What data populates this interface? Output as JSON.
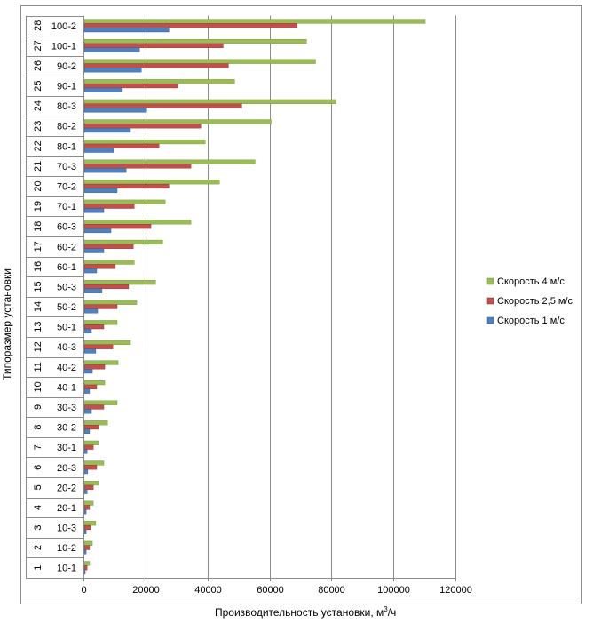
{
  "chart_data": {
    "type": "bar",
    "orientation": "horizontal",
    "title": "",
    "xlabel": "Производительность установки, м³/ч",
    "xlabel_main": "Производительность установки, м",
    "xlabel_sup": "3",
    "xlabel_tail": "/ч",
    "ylabel": "Типоразмер установки",
    "xlim": [
      0,
      120000
    ],
    "x_ticks": [
      "0",
      "20000",
      "40000",
      "60000",
      "80000",
      "100000",
      "120000"
    ],
    "x_tick_values": [
      0,
      20000,
      40000,
      60000,
      80000,
      100000,
      120000
    ],
    "grid": "vertical",
    "legend_position": "right",
    "categories": [
      {
        "num": "1",
        "label": "10-1"
      },
      {
        "num": "2",
        "label": "10-2"
      },
      {
        "num": "3",
        "label": "10-3"
      },
      {
        "num": "4",
        "label": "20-1"
      },
      {
        "num": "5",
        "label": "20-2"
      },
      {
        "num": "6",
        "label": "20-3"
      },
      {
        "num": "7",
        "label": "30-1"
      },
      {
        "num": "8",
        "label": "30-2"
      },
      {
        "num": "9",
        "label": "30-3"
      },
      {
        "num": "10",
        "label": "40-1"
      },
      {
        "num": "11",
        "label": "40-2"
      },
      {
        "num": "12",
        "label": "40-3"
      },
      {
        "num": "13",
        "label": "50-1"
      },
      {
        "num": "14",
        "label": "50-2"
      },
      {
        "num": "15",
        "label": "50-3"
      },
      {
        "num": "16",
        "label": "60-1"
      },
      {
        "num": "17",
        "label": "60-2"
      },
      {
        "num": "18",
        "label": "60-3"
      },
      {
        "num": "19",
        "label": "70-1"
      },
      {
        "num": "20",
        "label": "70-2"
      },
      {
        "num": "21",
        "label": "70-3"
      },
      {
        "num": "22",
        "label": "80-1"
      },
      {
        "num": "23",
        "label": "80-2"
      },
      {
        "num": "24",
        "label": "80-3"
      },
      {
        "num": "25",
        "label": "90-1"
      },
      {
        "num": "26",
        "label": "90-2"
      },
      {
        "num": "27",
        "label": "100-1"
      },
      {
        "num": "28",
        "label": "100-2"
      }
    ],
    "series": [
      {
        "name": "Скорость 4 м/с",
        "color": "#9BBB59",
        "values": [
          1700,
          2600,
          3700,
          2900,
          4600,
          6300,
          4600,
          7500,
          10600,
          6600,
          10900,
          14900,
          10600,
          16900,
          23000,
          16100,
          25300,
          34400,
          26100,
          43600,
          55100,
          39000,
          60300,
          81200,
          48500,
          74600,
          71700,
          110000
        ]
      },
      {
        "name": "Скорость 2,5 м/с",
        "color": "#C0504D",
        "values": [
          900,
          1700,
          2000,
          1700,
          2900,
          4000,
          2900,
          4600,
          6300,
          4000,
          6600,
          9200,
          6300,
          10600,
          14300,
          10000,
          15800,
          21500,
          16100,
          27300,
          34400,
          24100,
          37600,
          50800,
          30100,
          46500,
          44800,
          68600
        ]
      },
      {
        "name": "Скорость 1 м/с",
        "color": "#4F81BD",
        "values": [
          300,
          600,
          600,
          600,
          900,
          1100,
          900,
          1700,
          2300,
          1700,
          2600,
          3700,
          2300,
          4300,
          5700,
          4000,
          6300,
          8600,
          6300,
          10600,
          13500,
          9400,
          14900,
          20100,
          12000,
          18400,
          17800,
          27300
        ]
      }
    ],
    "legend_order": [
      0,
      1,
      2
    ]
  }
}
